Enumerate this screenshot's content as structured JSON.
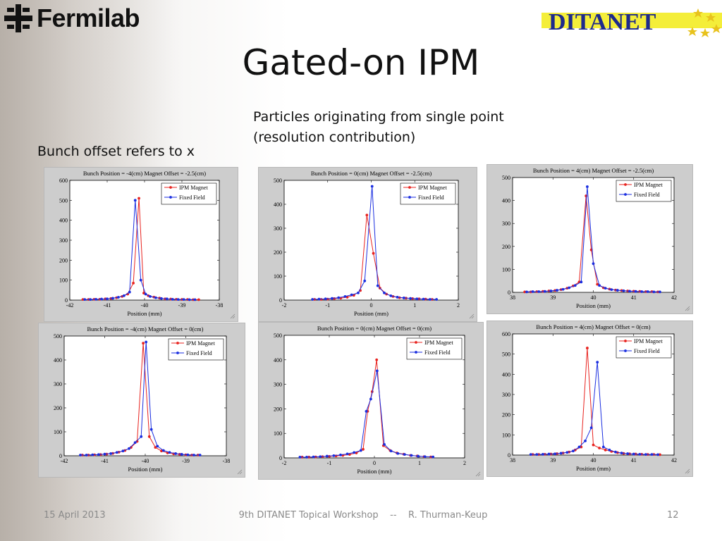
{
  "header": {
    "fermilab_logo_text": "Fermilab",
    "ditanet_logo_text": "DITANET",
    "title": "Gated-on IPM",
    "subtitle_line1": "Particles originating from single point",
    "subtitle_line2": "(resolution contribution)",
    "note": "Bunch offset refers to x"
  },
  "footer": {
    "date": "15 April 2013",
    "center": "9th DITANET Topical Workshop    --    R. Thurman-Keup",
    "page": "12"
  },
  "colors": {
    "ipm": "#e8231f",
    "fixed": "#1a2ee0"
  },
  "chart_data": [
    {
      "type": "line",
      "title": "Bunch Position = -4(cm)     Magnet Offset = -2.5(cm)",
      "xlabel": "Position  (mm)",
      "ylabel": "",
      "xlim": [
        -42,
        -38
      ],
      "ylim": [
        0,
        600
      ],
      "xticks": [
        -42,
        -41,
        -40,
        -39,
        -38
      ],
      "yticks": [
        0,
        100,
        200,
        300,
        400,
        500,
        600
      ],
      "legend": "top-right",
      "series": [
        {
          "name": "IPM Magnet",
          "x": [
            -41.65,
            -41.5,
            -41.35,
            -41.2,
            -41.05,
            -40.9,
            -40.75,
            -40.6,
            -40.45,
            -40.3,
            -40.15,
            -40.02,
            -39.9,
            -39.75,
            -39.6,
            -39.45,
            -39.3,
            -39.15,
            -39.0,
            -38.85,
            -38.7,
            -38.55
          ],
          "y": [
            3,
            3,
            4,
            4,
            6,
            8,
            12,
            18,
            30,
            85,
            510,
            35,
            22,
            15,
            10,
            6,
            5,
            4,
            3,
            3,
            2,
            2
          ]
        },
        {
          "name": "Fixed Field",
          "x": [
            -41.6,
            -41.45,
            -41.3,
            -41.15,
            -41.0,
            -40.85,
            -40.7,
            -40.55,
            -40.4,
            -40.25,
            -40.1,
            -39.97,
            -39.85,
            -39.7,
            -39.55,
            -39.4,
            -39.25,
            -39.1,
            -38.95,
            -38.8,
            -38.65
          ],
          "y": [
            3,
            3,
            4,
            5,
            6,
            9,
            14,
            22,
            40,
            500,
            100,
            30,
            18,
            12,
            8,
            6,
            4,
            3,
            3,
            2,
            2
          ]
        }
      ]
    },
    {
      "type": "line",
      "title": "Bunch Position = 0(cm)     Magnet Offset = -2.5(cm)",
      "xlabel": "Position  (mm)",
      "ylabel": "",
      "xlim": [
        -2,
        2
      ],
      "ylim": [
        0,
        500
      ],
      "xticks": [
        -2,
        -1,
        0,
        1,
        2
      ],
      "yticks": [
        0,
        100,
        200,
        300,
        400,
        500
      ],
      "legend": "top-right",
      "series": [
        {
          "name": "IPM Magnet",
          "x": [
            -1.3,
            -1.15,
            -1.0,
            -0.85,
            -0.7,
            -0.55,
            -0.4,
            -0.25,
            -0.1,
            0.05,
            0.2,
            0.35,
            0.5,
            0.65,
            0.8,
            0.95,
            1.1,
            1.25,
            1.4
          ],
          "y": [
            3,
            3,
            4,
            6,
            8,
            12,
            20,
            40,
            355,
            195,
            50,
            25,
            15,
            10,
            8,
            6,
            5,
            4,
            3
          ]
        },
        {
          "name": "Fixed Field",
          "x": [
            -1.35,
            -1.2,
            -1.05,
            -0.9,
            -0.75,
            -0.6,
            -0.45,
            -0.3,
            -0.15,
            0.02,
            0.15,
            0.3,
            0.45,
            0.6,
            0.75,
            0.9,
            1.05,
            1.2,
            1.35,
            1.5
          ],
          "y": [
            3,
            4,
            5,
            7,
            10,
            15,
            22,
            30,
            80,
            475,
            60,
            30,
            18,
            12,
            9,
            7,
            5,
            4,
            3,
            3
          ]
        }
      ]
    },
    {
      "type": "line",
      "title": "Bunch Position = 4(cm)     Magnet Offset = -2.5(cm)",
      "xlabel": "Position  (mm)",
      "ylabel": "",
      "xlim": [
        38,
        42
      ],
      "ylim": [
        0,
        500
      ],
      "xticks": [
        38,
        39,
        40,
        41,
        42
      ],
      "yticks": [
        0,
        100,
        200,
        300,
        400,
        500
      ],
      "legend": "top-right",
      "series": [
        {
          "name": "IPM Magnet",
          "x": [
            38.3,
            38.45,
            38.6,
            38.75,
            38.9,
            39.05,
            39.2,
            39.35,
            39.5,
            39.65,
            39.82,
            39.95,
            40.1,
            40.25,
            40.4,
            40.55,
            40.7,
            40.85,
            41.0,
            41.15,
            41.3,
            41.45,
            41.6
          ],
          "y": [
            2,
            2,
            3,
            4,
            6,
            8,
            12,
            18,
            28,
            45,
            420,
            185,
            35,
            20,
            14,
            10,
            8,
            6,
            5,
            4,
            3,
            3,
            2
          ]
        },
        {
          "name": "Fixed Field",
          "x": [
            38.35,
            38.5,
            38.65,
            38.8,
            38.95,
            39.1,
            39.25,
            39.4,
            39.55,
            39.7,
            39.85,
            40.0,
            40.15,
            40.3,
            40.45,
            40.6,
            40.75,
            40.9,
            41.05,
            41.2,
            41.35,
            41.5,
            41.65
          ],
          "y": [
            2,
            3,
            3,
            4,
            6,
            9,
            13,
            20,
            30,
            45,
            460,
            125,
            30,
            18,
            12,
            9,
            7,
            5,
            4,
            3,
            3,
            2,
            2
          ]
        }
      ]
    },
    {
      "type": "line",
      "title": "Bunch Position = -4(cm)     Magnet Offset = 0(cm)",
      "xlabel": "Position  (mm)",
      "ylabel": "",
      "xlim": [
        -42,
        -38
      ],
      "ylim": [
        0,
        500
      ],
      "xticks": [
        -42,
        -41,
        -40,
        -39,
        -38
      ],
      "yticks": [
        0,
        100,
        200,
        300,
        400,
        500
      ],
      "legend": "top-right",
      "series": [
        {
          "name": "IPM Magnet",
          "x": [
            -41.55,
            -41.4,
            -41.25,
            -41.1,
            -40.95,
            -40.8,
            -40.65,
            -40.5,
            -40.35,
            -40.2,
            -40.05,
            -39.9,
            -39.75,
            -39.6,
            -39.45,
            -39.3,
            -39.15,
            -39.0,
            -38.85,
            -38.7
          ],
          "y": [
            3,
            3,
            4,
            5,
            7,
            10,
            15,
            22,
            35,
            60,
            470,
            80,
            35,
            20,
            12,
            8,
            6,
            4,
            3,
            3
          ]
        },
        {
          "name": "Fixed Field",
          "x": [
            -41.6,
            -41.45,
            -41.3,
            -41.15,
            -41.0,
            -40.85,
            -40.7,
            -40.55,
            -40.4,
            -40.25,
            -40.1,
            -39.98,
            -39.85,
            -39.7,
            -39.55,
            -39.4,
            -39.25,
            -39.1,
            -38.95,
            -38.8,
            -38.65
          ],
          "y": [
            3,
            3,
            4,
            5,
            7,
            9,
            14,
            20,
            30,
            55,
            80,
            475,
            110,
            40,
            22,
            14,
            9,
            6,
            4,
            3,
            3
          ]
        }
      ]
    },
    {
      "type": "line",
      "title": "Bunch Position = 0(cm)     Magnet Offset = 0(cm)",
      "xlabel": "Position  (mm)",
      "ylabel": "",
      "xlim": [
        -2,
        2
      ],
      "ylim": [
        0,
        500
      ],
      "xticks": [
        -2,
        -1,
        0,
        1,
        2
      ],
      "yticks": [
        0,
        100,
        200,
        300,
        400,
        500
      ],
      "legend": "top-right",
      "series": [
        {
          "name": "IPM Magnet",
          "x": [
            -1.6,
            -1.45,
            -1.3,
            -1.15,
            -1.0,
            -0.85,
            -0.7,
            -0.55,
            -0.4,
            -0.25,
            -0.15,
            -0.05,
            0.05,
            0.2,
            0.35,
            0.5,
            0.65,
            0.8,
            0.95,
            1.1,
            1.25
          ],
          "y": [
            3,
            3,
            4,
            5,
            6,
            8,
            10,
            14,
            20,
            35,
            190,
            270,
            400,
            50,
            30,
            20,
            15,
            10,
            8,
            5,
            4
          ]
        },
        {
          "name": "Fixed Field",
          "x": [
            -1.65,
            -1.5,
            -1.35,
            -1.2,
            -1.05,
            -0.9,
            -0.75,
            -0.6,
            -0.45,
            -0.3,
            -0.18,
            -0.08,
            0.06,
            0.22,
            0.37,
            0.52,
            0.67,
            0.82,
            0.97,
            1.12,
            1.3
          ],
          "y": [
            3,
            3,
            4,
            5,
            7,
            9,
            12,
            16,
            22,
            30,
            190,
            240,
            355,
            55,
            28,
            18,
            14,
            10,
            7,
            5,
            4
          ]
        }
      ]
    },
    {
      "type": "line",
      "title": "Bunch Position = 4(cm)     Magnet Offset = 0(cm)",
      "xlabel": "Position  (mm)",
      "ylabel": "",
      "xlim": [
        38,
        42
      ],
      "ylim": [
        0,
        600
      ],
      "xticks": [
        38,
        39,
        40,
        41,
        42
      ],
      "yticks": [
        0,
        100,
        200,
        300,
        400,
        500,
        600
      ],
      "legend": "top-right",
      "series": [
        {
          "name": "IPM Magnet",
          "x": [
            38.5,
            38.65,
            38.8,
            38.95,
            39.1,
            39.25,
            39.4,
            39.55,
            39.7,
            39.85,
            40.0,
            40.15,
            40.3,
            40.45,
            40.6,
            40.75,
            40.9,
            41.05,
            41.2,
            41.35,
            41.5,
            41.65
          ],
          "y": [
            3,
            3,
            4,
            5,
            7,
            10,
            15,
            25,
            40,
            530,
            50,
            35,
            25,
            18,
            12,
            8,
            6,
            5,
            4,
            3,
            3,
            2
          ]
        },
        {
          "name": "Fixed Field",
          "x": [
            38.45,
            38.6,
            38.75,
            38.9,
            39.05,
            39.2,
            39.35,
            39.5,
            39.65,
            39.8,
            39.95,
            40.1,
            40.25,
            40.4,
            40.55,
            40.7,
            40.85,
            41.0,
            41.15,
            41.3,
            41.45,
            41.6
          ],
          "y": [
            3,
            3,
            4,
            5,
            6,
            9,
            13,
            20,
            40,
            70,
            135,
            460,
            40,
            25,
            15,
            10,
            7,
            5,
            4,
            3,
            3,
            2
          ]
        }
      ]
    }
  ]
}
